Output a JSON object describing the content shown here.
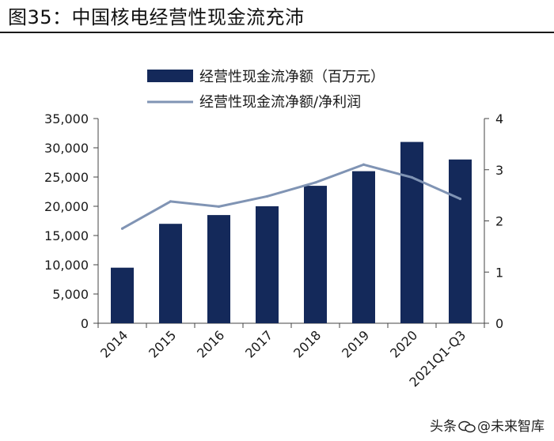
{
  "title": "图35：中国核电经营性现金流充沛",
  "watermark": {
    "prefix": "头条",
    "account": "@未来智库"
  },
  "colors": {
    "bar": "#14295a",
    "line": "#8094b4",
    "axis": "#444444"
  },
  "chart_data": {
    "type": "bar+line",
    "categories": [
      "2014",
      "2015",
      "2016",
      "2017",
      "2018",
      "2019",
      "2020",
      "2021Q1-Q3"
    ],
    "series": [
      {
        "name": "经营性现金流净额（百万元）",
        "type": "bar",
        "axis": "left",
        "values": [
          9500,
          17000,
          18500,
          20000,
          23500,
          26000,
          31000,
          28000
        ]
      },
      {
        "name": "经营性现金流净额/净利润",
        "type": "line",
        "axis": "right",
        "values": [
          1.85,
          2.38,
          2.28,
          2.48,
          2.75,
          3.1,
          2.85,
          2.43
        ]
      }
    ],
    "y_left": {
      "min": 0,
      "max": 35000,
      "ticks": [
        "0",
        "5,000",
        "10,000",
        "15,000",
        "20,000",
        "25,000",
        "30,000",
        "35,000"
      ]
    },
    "y_right": {
      "min": 0,
      "max": 4,
      "ticks": [
        "0",
        "1",
        "2",
        "3",
        "4"
      ]
    },
    "legend_position": "top-center",
    "grid": false
  }
}
